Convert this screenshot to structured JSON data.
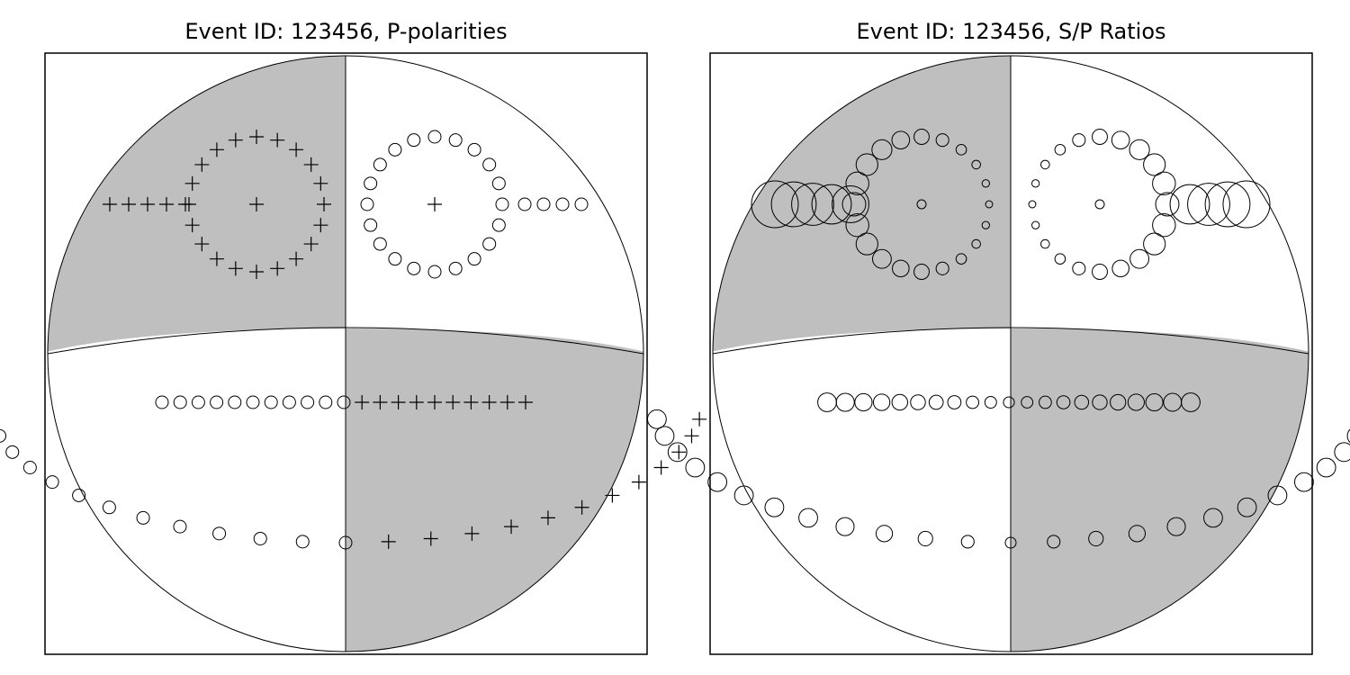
{
  "chart_data": [
    {
      "type": "beachball-polarity-plot",
      "title": "Event ID: 123456, P-polarities",
      "compressional_fill": "#bfbfbf",
      "dilatational_fill": "#ffffff",
      "nodal_planes": "two orthogonal planes: one vertical N-S, one near-horizontal slightly curved",
      "marker_legend": {
        "plus": "compressional (up)",
        "circle": "dilatational (down)"
      },
      "center_marker": "plus",
      "features": [
        {
          "name": "left-ring",
          "marker": "plus",
          "count": 20,
          "center_marker": "plus"
        },
        {
          "name": "left-arm",
          "marker": "plus",
          "count": 5
        },
        {
          "name": "right-ring",
          "marker": "circle",
          "count": 20,
          "center_marker": "plus"
        },
        {
          "name": "right-arm",
          "marker": "circle",
          "count": 4
        },
        {
          "name": "smile",
          "marker": "mixed",
          "rule": "circle in white quadrant, plus in grey quadrant"
        }
      ]
    },
    {
      "type": "beachball-amplitude-ratio-plot",
      "title": "Event ID: 123456, S/P Ratios",
      "compressional_fill": "#bfbfbf",
      "dilatational_fill": "#ffffff",
      "marker": "circle sized by S/P amplitude ratio",
      "note": "circle size grows away from the nodal planes and shrinks close to them"
    }
  ]
}
